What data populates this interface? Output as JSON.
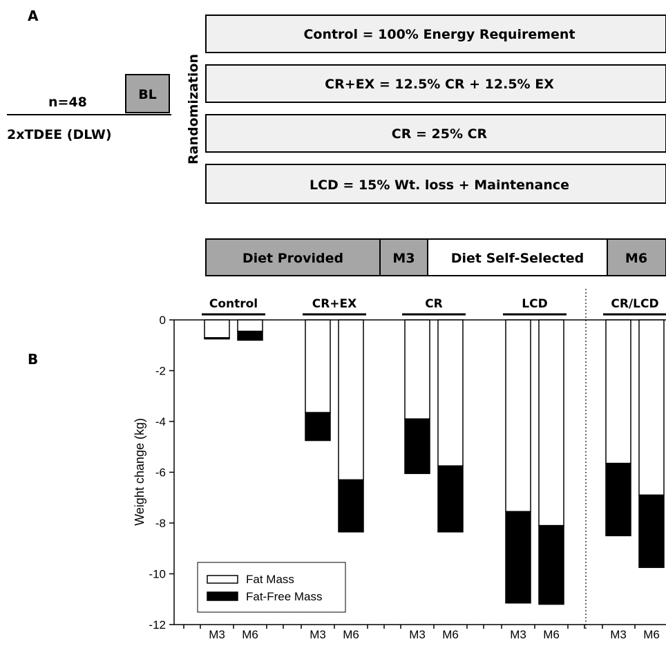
{
  "panel_a": {
    "label": "A",
    "sample_size": "n=48",
    "baseline_box": "BL",
    "baseline_measure": "2xTDEE (DLW)",
    "randomization_label": "Randomization",
    "arms": [
      "Control = 100% Energy Requirement",
      "CR+EX = 12.5% CR + 12.5% EX",
      "CR = 25% CR",
      "LCD = 15% Wt. loss + Maintenance"
    ],
    "timeline": [
      {
        "label": "Diet Provided",
        "shaded": true
      },
      {
        "label": "M3",
        "shaded": true
      },
      {
        "label": "Diet Self-Selected",
        "shaded": false
      },
      {
        "label": "M6",
        "shaded": true
      }
    ],
    "colors": {
      "box_fill": "#f0f0f0",
      "shaded_fill": "#a6a6a6",
      "white_fill": "#ffffff"
    }
  },
  "panel_b": {
    "label": "B"
  },
  "chart_data": {
    "type": "bar",
    "stacked": true,
    "ylabel": "Weight change (kg)",
    "ylim": [
      -12,
      0
    ],
    "yticks": [
      0,
      -2,
      -4,
      -6,
      -8,
      -10,
      -12
    ],
    "groups": [
      "Control",
      "CR+EX",
      "CR",
      "LCD",
      "CR/LCD"
    ],
    "categories": [
      "M3",
      "M6",
      "M3",
      "M6",
      "M3",
      "M6",
      "M3",
      "M6",
      "M3",
      "M6"
    ],
    "series": [
      {
        "name": "Fat Mass",
        "color": "#ffffff",
        "values": [
          -0.7,
          -0.45,
          -3.65,
          -6.3,
          -3.9,
          -5.75,
          -7.55,
          -8.1,
          -5.65,
          -6.9
        ]
      },
      {
        "name": "Fat-Free Mass",
        "color": "#000000",
        "values": [
          -0.05,
          -0.35,
          -1.1,
          -2.05,
          -2.15,
          -2.6,
          -3.6,
          -3.1,
          -2.85,
          -2.85
        ]
      }
    ],
    "legend_position": "bottom-left"
  }
}
